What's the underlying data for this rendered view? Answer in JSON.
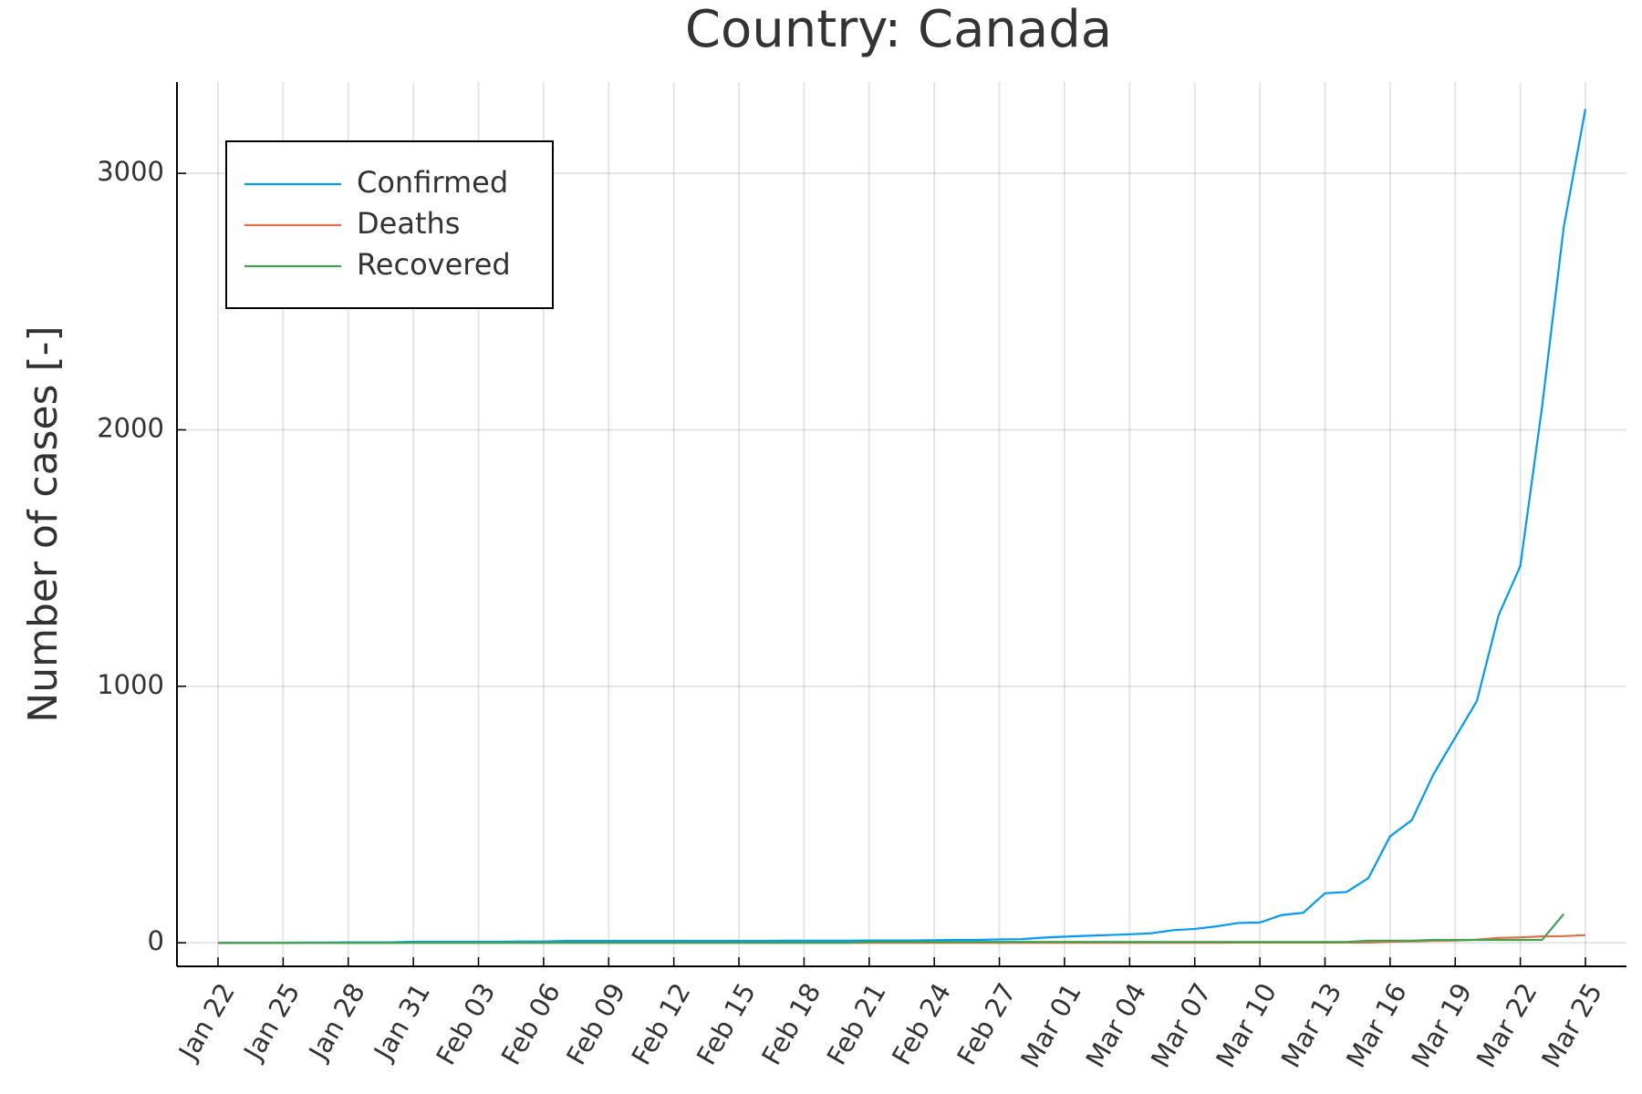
{
  "chart_data": {
    "type": "line",
    "title": "Country: Canada",
    "y_label": "Number of cases [-]",
    "categories": [
      "Jan 22",
      null,
      null,
      "Jan 25",
      null,
      null,
      "Jan 28",
      null,
      null,
      "Jan 31",
      null,
      null,
      "Feb 03",
      null,
      null,
      "Feb 06",
      null,
      null,
      "Feb 09",
      null,
      null,
      "Feb 12",
      null,
      null,
      "Feb 15",
      null,
      null,
      "Feb 18",
      null,
      null,
      "Feb 21",
      null,
      null,
      "Feb 24",
      null,
      null,
      "Feb 27",
      null,
      null,
      "Mar 01",
      null,
      null,
      "Mar 04",
      null,
      null,
      "Mar 07",
      null,
      null,
      "Mar 10",
      null,
      null,
      "Mar 13",
      null,
      null,
      "Mar 16",
      null,
      null,
      "Mar 19",
      null,
      null,
      "Mar 22",
      null,
      null,
      "Mar 25"
    ],
    "series": [
      {
        "name": "Confirmed",
        "color": "#009af9",
        "values": [
          0,
          0,
          0,
          0,
          1,
          1,
          2,
          2,
          2,
          4,
          4,
          4,
          4,
          4,
          5,
          5,
          7,
          7,
          7,
          7,
          7,
          7,
          7,
          7,
          7,
          7,
          8,
          8,
          8,
          8,
          9,
          9,
          9,
          10,
          11,
          11,
          13,
          14,
          20,
          24,
          27,
          30,
          33,
          37,
          49,
          54,
          64,
          77,
          79,
          108,
          117,
          193,
          198,
          252,
          415,
          478,
          657,
          800,
          943,
          1277,
          1469,
          2088,
          2790,
          3251
        ]
      },
      {
        "name": "Deaths",
        "color": "#e26f46",
        "values": [
          0,
          0,
          0,
          0,
          0,
          0,
          0,
          0,
          0,
          0,
          0,
          0,
          0,
          0,
          0,
          0,
          0,
          0,
          0,
          0,
          0,
          0,
          0,
          0,
          0,
          0,
          0,
          0,
          0,
          0,
          0,
          0,
          0,
          0,
          0,
          0,
          0,
          0,
          0,
          0,
          0,
          0,
          0,
          0,
          0,
          0,
          0,
          1,
          1,
          1,
          1,
          1,
          1,
          1,
          4,
          5,
          8,
          9,
          12,
          19,
          21,
          25,
          26,
          30
        ]
      },
      {
        "name": "Recovered",
        "color": "#3da44d",
        "values": [
          0,
          0,
          0,
          0,
          0,
          0,
          0,
          0,
          0,
          0,
          0,
          0,
          0,
          0,
          0,
          0,
          0,
          0,
          0,
          0,
          0,
          0,
          0,
          0,
          0,
          0,
          0,
          0,
          0,
          0,
          3,
          3,
          3,
          3,
          3,
          3,
          3,
          3,
          3,
          3,
          3,
          3,
          3,
          3,
          3,
          3,
          3,
          3,
          3,
          3,
          3,
          3,
          3,
          8,
          8,
          8,
          11,
          11,
          11,
          11,
          11,
          11,
          112,
          null
        ]
      }
    ],
    "ylim": [
      -92,
      3356
    ],
    "yticks": [
      0,
      1000,
      2000,
      3000
    ],
    "grid": true,
    "legend": "top-left"
  }
}
